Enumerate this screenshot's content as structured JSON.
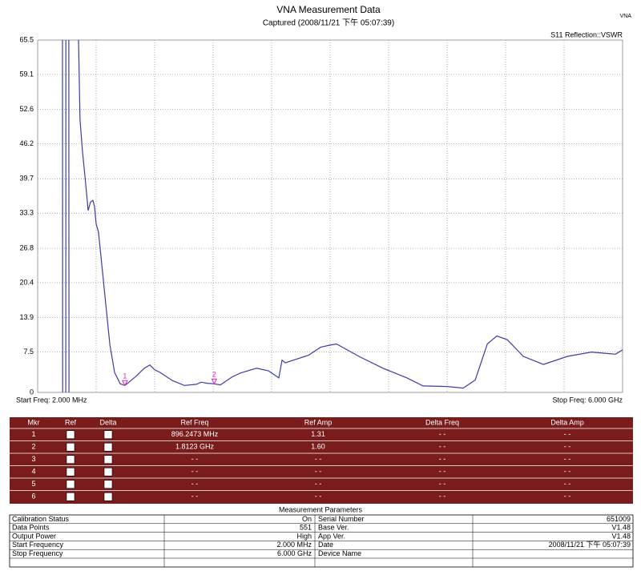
{
  "app_label": "VNA",
  "chart_data": {
    "type": "line",
    "title": "VNA Measurement Data",
    "subtitle": "Captured  (2008/11/21 下午 05:07:39)",
    "trace_label": "S11 Reflection::VSWR",
    "start_label": "Start Freq: 2.000 MHz",
    "stop_label": "Stop Freq: 6.000 GHz",
    "xlim": [
      2,
      6000
    ],
    "ylim": [
      0,
      65.5
    ],
    "yticks": [
      0,
      7.5,
      13.9,
      20.4,
      26.8,
      33.3,
      39.7,
      46.2,
      52.6,
      59.1,
      65.5
    ],
    "grid": true,
    "series": [
      {
        "color": "#3c3caa",
        "x": [
          257,
          258,
          274,
          290,
          291,
          306,
          322,
          323,
          400,
          421,
          437,
          462,
          495,
          520,
          544,
          569,
          585,
          602,
          626,
          659,
          700,
          742,
          791,
          848,
          896.2473,
          931,
          1012,
          1095,
          1152,
          1202,
          1259,
          1383,
          1506,
          1629,
          1680,
          1740,
          1812.3,
          1875,
          1999,
          2081,
          2246,
          2369,
          2475,
          2508,
          2541,
          2656,
          2779,
          2903,
          3001,
          3067,
          3297,
          3543,
          3790,
          3954,
          4201,
          4366,
          4489,
          4613,
          4711,
          4818,
          4982,
          5188,
          5434,
          5681,
          5927,
          6000
        ],
        "values": [
          65.5,
          0,
          null,
          0,
          65.5,
          null,
          65.5,
          0,
          null,
          65.5,
          50.6,
          44.7,
          38.7,
          33.8,
          35.4,
          35.7,
          34.5,
          31.3,
          29.8,
          23.8,
          16.4,
          8.9,
          3.7,
          1.6,
          1.31,
          1.8,
          3.0,
          4.5,
          5.1,
          4.2,
          3.7,
          2.2,
          1.3,
          1.5,
          1.9,
          1.7,
          1.6,
          1.4,
          2.9,
          3.6,
          4.5,
          4.0,
          2.7,
          6.0,
          5.5,
          6.2,
          6.9,
          8.4,
          8.8,
          9.0,
          6.7,
          4.5,
          2.7,
          1.2,
          1.1,
          0.8,
          2.3,
          9.0,
          10.5,
          9.8,
          6.7,
          5.2,
          6.7,
          7.5,
          7.1,
          7.9
        ]
      }
    ],
    "markers": [
      {
        "label": "1",
        "x": 896.2473,
        "y": 1.31,
        "color": "#e020c0"
      },
      {
        "label": "2",
        "x": 1812.3,
        "y": 1.6,
        "color": "#e020c0"
      }
    ]
  },
  "marker_table": {
    "header": [
      "Mkr",
      "Ref",
      "Delta",
      "Ref Freq",
      "Ref Amp",
      "Delta Freq",
      "Delta Amp"
    ],
    "rows": [
      [
        "1",
        "896.2473 MHz",
        "1.31",
        "- -",
        "- -"
      ],
      [
        "2",
        "1.8123 GHz",
        "1.60",
        "- -",
        "- -"
      ],
      [
        "3",
        "- -",
        "- -",
        "- -",
        "- -"
      ],
      [
        "4",
        "- -",
        "- -",
        "- -",
        "- -"
      ],
      [
        "5",
        "- -",
        "- -",
        "- -",
        "- -"
      ],
      [
        "6",
        "- -",
        "- -",
        "- -",
        "- -"
      ]
    ]
  },
  "parameters": {
    "title": "Measurement Parameters",
    "rows": [
      [
        "Calibration Status",
        "On",
        "Serial Number",
        "651009"
      ],
      [
        "Data Points",
        "551",
        "Base Ver.",
        "V1.48"
      ],
      [
        "Output Power",
        "High",
        "App Ver.",
        "V1.48"
      ],
      [
        "Start Frequency",
        "2.000 MHz",
        "Date",
        "2008/11/21 下午 05:07:39"
      ],
      [
        "Stop Frequency",
        "6.000 GHz",
        "Device Name"
      ]
    ]
  }
}
